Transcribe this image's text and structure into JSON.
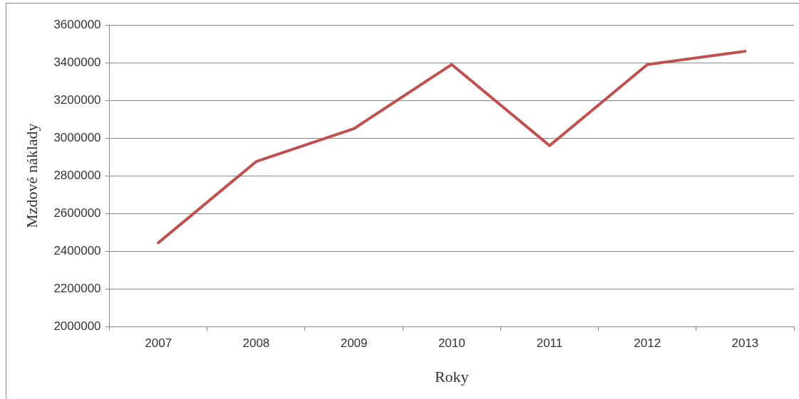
{
  "chart_data": {
    "type": "line",
    "xlabel": "Roky",
    "ylabel": "Mzdové náklady",
    "categories": [
      "2007",
      "2008",
      "2009",
      "2010",
      "2011",
      "2012",
      "2013"
    ],
    "series": [
      {
        "color": "#c0504d",
        "values": [
          2445000,
          2875000,
          3050000,
          3390000,
          2960000,
          3390000,
          3460000
        ]
      }
    ],
    "ylim": [
      2000000,
      3600000
    ],
    "yticks": [
      2000000,
      2200000,
      2400000,
      2600000,
      2800000,
      3000000,
      3200000,
      3400000,
      3600000
    ],
    "grid": "y",
    "legend": false,
    "marker": "none",
    "line_style": "solid"
  }
}
